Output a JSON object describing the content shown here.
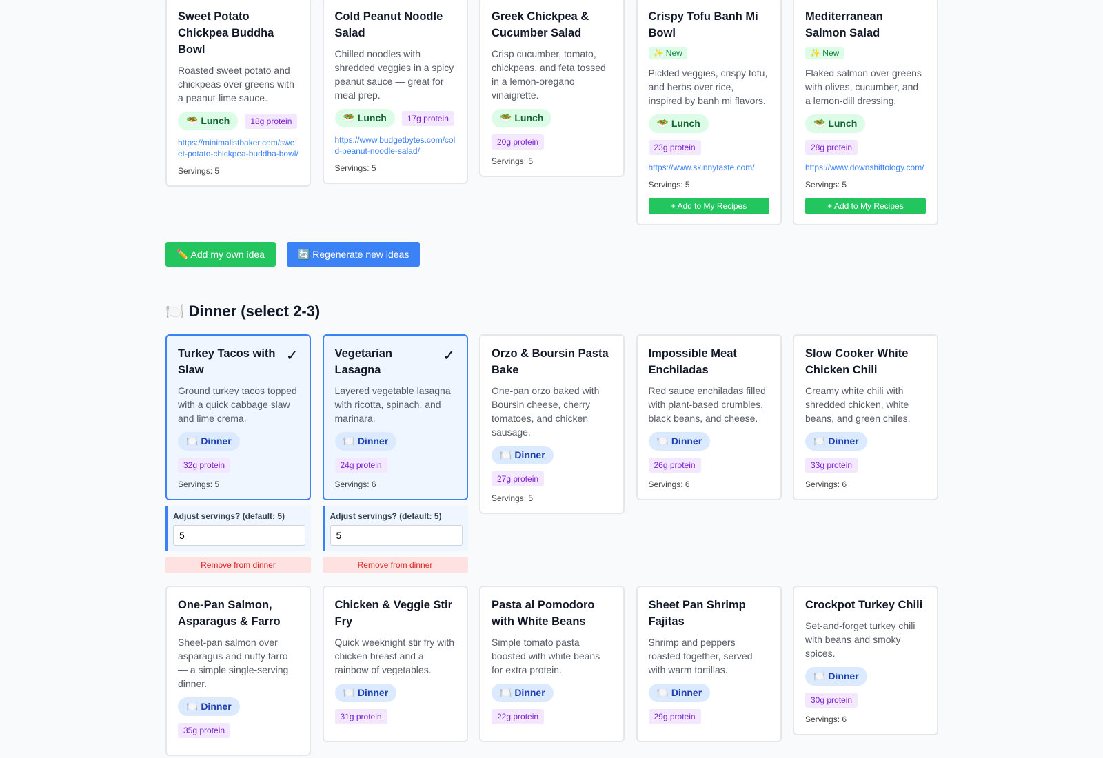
{
  "lunch_cards": [
    {
      "title": "Sweet Potato Chickpea Buddha Bowl",
      "description": "Roasted sweet potato and chickpeas over greens with a peanut-lime sauce.",
      "meal_tag": "🥗 Lunch",
      "protein": "18g protein",
      "url": "https://minimalistbaker.com/sweet-potato-chickpea-buddha-bowl/",
      "servings": "Servings: 5"
    },
    {
      "title": "Cold Peanut Noodle Salad",
      "description": "Chilled noodles with shredded veggies in a spicy peanut sauce — great for meal prep.",
      "meal_tag": "🥗 Lunch",
      "protein": "17g protein",
      "url": "https://www.budgetbytes.com/cold-peanut-noodle-salad/",
      "servings": "Servings: 5"
    },
    {
      "title": "Greek Chickpea & Cucumber Salad",
      "description": "Crisp cucumber, tomato, chickpeas, and feta tossed in a lemon-oregano vinaigrette.",
      "meal_tag": "🥗 Lunch",
      "protein": "20g protein",
      "servings": "Servings: 5"
    },
    {
      "title": "Crispy Tofu Banh Mi Bowl",
      "badge": "✨ New",
      "description": "Pickled veggies, crispy tofu, and herbs over rice, inspired by banh mi flavors.",
      "meal_tag": "🥗 Lunch",
      "protein": "23g protein",
      "url": "https://www.skinnytaste.com/",
      "servings": "Servings: 5",
      "add_button": "+ Add to My Recipes"
    },
    {
      "title": "Mediterranean Salmon Salad",
      "badge": "✨ New",
      "description": "Flaked salmon over greens with olives, cucumber, and a lemon-dill dressing.",
      "meal_tag": "🥗 Lunch",
      "protein": "28g protein",
      "url": "https://www.downshiftology.com/",
      "servings": "Servings: 5",
      "add_button": "+ Add to My Recipes"
    }
  ],
  "buttons": {
    "add_idea": "✏️ Add my own idea",
    "regenerate": "🔄 Regenerate new ideas"
  },
  "dinner_section": {
    "heading": "🍽️ Dinner (select 2-3)",
    "cards": [
      {
        "title": "Turkey Tacos with Slaw",
        "selected": true,
        "check": "✓",
        "description": "Ground turkey tacos topped with a quick cabbage slaw and lime crema.",
        "meal_tag": "🍽️ Dinner",
        "protein": "32g protein",
        "servings": "Servings: 5",
        "adjust_label": "Adjust servings? (default: 5)",
        "adjust_value": "5",
        "remove_button": "Remove from dinner"
      },
      {
        "title": "Vegetarian Lasagna",
        "selected": true,
        "check": "✓",
        "description": "Layered vegetable lasagna with ricotta, spinach, and marinara.",
        "meal_tag": "🍽️ Dinner",
        "protein": "24g protein",
        "servings": "Servings: 6",
        "adjust_label": "Adjust servings? (default: 5)",
        "adjust_value": "5",
        "remove_button": "Remove from dinner"
      },
      {
        "title": "Orzo & Boursin Pasta Bake",
        "description": "One-pan orzo baked with Boursin cheese, cherry tomatoes, and chicken sausage.",
        "meal_tag": "🍽️ Dinner",
        "protein": "27g protein",
        "servings": "Servings: 5"
      },
      {
        "title": "Impossible Meat Enchiladas",
        "description": "Red sauce enchiladas filled with plant-based crumbles, black beans, and cheese.",
        "meal_tag": "🍽️ Dinner",
        "protein": "26g protein",
        "servings": "Servings: 6"
      },
      {
        "title": "Slow Cooker White Chicken Chili",
        "description": "Creamy white chili with shredded chicken, white beans, and green chiles.",
        "meal_tag": "🍽️ Dinner",
        "protein": "33g protein",
        "servings": "Servings: 6"
      },
      {
        "title": "One-Pan Salmon, Asparagus & Farro",
        "description": "Sheet-pan salmon over asparagus and nutty farro — a simple single-serving dinner.",
        "meal_tag": "🍽️ Dinner",
        "protein": "35g protein"
      },
      {
        "title": "Chicken & Veggie Stir Fry",
        "description": "Quick weeknight stir fry with chicken breast and a rainbow of vegetables.",
        "meal_tag": "🍽️ Dinner",
        "protein": "31g protein"
      },
      {
        "title": "Pasta al Pomodoro with White Beans",
        "description": "Simple tomato pasta boosted with white beans for extra protein.",
        "meal_tag": "🍽️ Dinner",
        "protein": "22g protein"
      },
      {
        "title": "Sheet Pan Shrimp Fajitas",
        "description": "Shrimp and peppers roasted together, served with warm tortillas.",
        "meal_tag": "🍽️ Dinner",
        "protein": "29g protein"
      },
      {
        "title": "Crockpot Turkey Chili",
        "description": "Set-and-forget turkey chili with beans and smoky spices.",
        "meal_tag": "🍽️ Dinner",
        "protein": "30g protein",
        "servings": "Servings: 6"
      }
    ]
  }
}
